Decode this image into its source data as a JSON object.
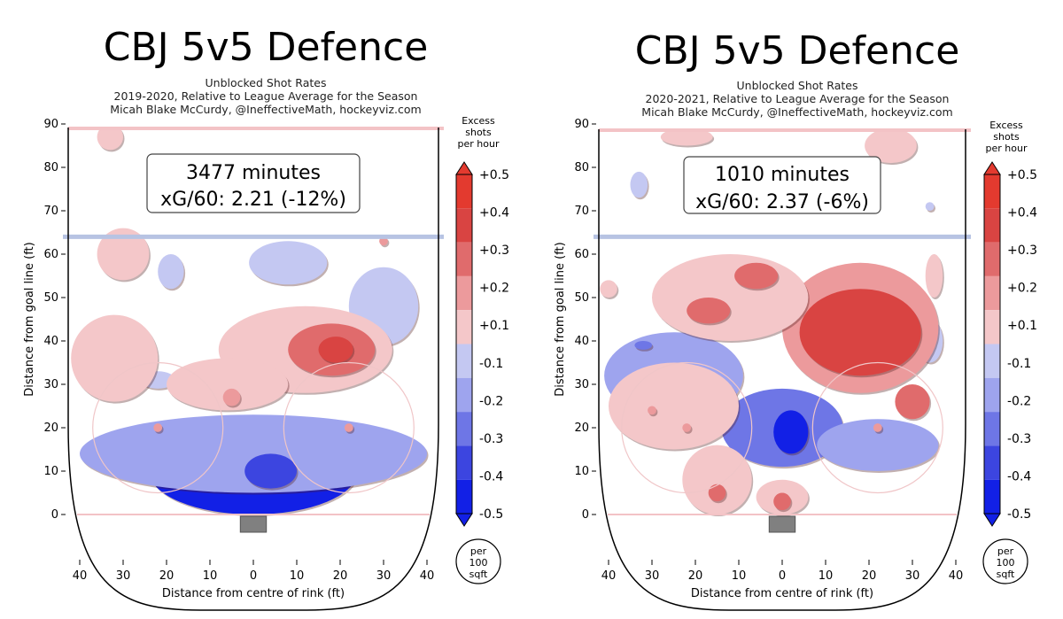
{
  "colors": {
    "red": [
      "#f4c7c9",
      "#ec9a9c",
      "#e06b6c",
      "#d94442",
      "#e33a2f"
    ],
    "blue": [
      "#c4c8f2",
      "#9ea4ee",
      "#6e76e6",
      "#3c45e0",
      "#1220e6"
    ],
    "blue_line": "#b7c3e3",
    "goal_line": "#f3c3c6",
    "net": "#808080"
  },
  "shared": {
    "colorbar_title": [
      "Excess",
      "shots",
      "per hour"
    ],
    "colorbar_ticks": [
      "+0.5",
      "+0.4",
      "+0.3",
      "+0.2",
      "+0.1",
      "-0.1",
      "-0.2",
      "-0.3",
      "-0.4",
      "-0.5"
    ],
    "unit_circle": [
      "per",
      "100",
      "sqft"
    ],
    "xlabel": "Distance from centre of rink (ft)",
    "ylabel": "Distance from goal line (ft)",
    "x_ticks": [
      "40",
      "30",
      "20",
      "10",
      "0",
      "10",
      "20",
      "30",
      "40"
    ],
    "y_ticks": [
      "0",
      "10",
      "20",
      "30",
      "40",
      "50",
      "60",
      "70",
      "80",
      "90"
    ]
  },
  "chart_data": [
    {
      "type": "heatmap",
      "title": "CBJ 5v5 Defence",
      "subtitle_lines": [
        "Unblocked Shot Rates",
        "2019-2020, Relative to League Average for the Season",
        "Micah Blake McCurdy, @IneffectiveMath, hockeyviz.com"
      ],
      "box_lines": [
        "3477 minutes",
        "xG/60: 2.21 (-12%)"
      ],
      "xlabel": "Distance from centre of rink (ft)",
      "ylabel": "Distance from goal line (ft)",
      "xlim": [
        -42,
        42
      ],
      "ylim": [
        -10,
        90
      ],
      "levels": [
        -0.5,
        -0.4,
        -0.3,
        -0.2,
        -0.1,
        0.1,
        0.2,
        0.3,
        0.4,
        0.5
      ],
      "regions": [
        {
          "x": 0,
          "y": 10,
          "rx": 24,
          "ry": 10,
          "value": -0.5
        },
        {
          "x": 0,
          "y": 14,
          "rx": 40,
          "ry": 9,
          "value": -0.2
        },
        {
          "x": 4,
          "y": 10,
          "rx": 6,
          "ry": 4,
          "value": -0.4
        },
        {
          "x": 30,
          "y": 48,
          "rx": 8,
          "ry": 9,
          "value": -0.1
        },
        {
          "x": 8,
          "y": 58,
          "rx": 9,
          "ry": 5,
          "value": -0.1
        },
        {
          "x": -19,
          "y": 56,
          "rx": 3,
          "ry": 4,
          "value": -0.1
        },
        {
          "x": -22,
          "y": 31,
          "rx": 4,
          "ry": 2,
          "value": -0.1
        },
        {
          "x": 12,
          "y": 38,
          "rx": 20,
          "ry": 10,
          "value": 0.1
        },
        {
          "x": 18,
          "y": 38,
          "rx": 10,
          "ry": 6,
          "value": 0.3
        },
        {
          "x": 19,
          "y": 38,
          "rx": 4,
          "ry": 3,
          "value": 0.4
        },
        {
          "x": -32,
          "y": 36,
          "rx": 10,
          "ry": 10,
          "value": 0.1
        },
        {
          "x": -30,
          "y": 60,
          "rx": 6,
          "ry": 6,
          "value": 0.1
        },
        {
          "x": -33,
          "y": 87,
          "rx": 3,
          "ry": 3,
          "value": 0.1
        },
        {
          "x": -6,
          "y": 30,
          "rx": 14,
          "ry": 6,
          "value": 0.1
        },
        {
          "x": -5,
          "y": 27,
          "rx": 2,
          "ry": 2,
          "value": 0.2
        },
        {
          "x": -22,
          "y": 20,
          "rx": 1,
          "ry": 1,
          "value": 0.2
        },
        {
          "x": 22,
          "y": 20,
          "rx": 1,
          "ry": 1,
          "value": 0.2
        },
        {
          "x": 30,
          "y": 63,
          "rx": 1,
          "ry": 1,
          "value": 0.2
        }
      ]
    },
    {
      "type": "heatmap",
      "title": "CBJ 5v5 Defence",
      "subtitle_lines": [
        "Unblocked Shot Rates",
        "2020-2021, Relative to League Average for the Season",
        "Micah Blake McCurdy, @IneffectiveMath, hockeyviz.com"
      ],
      "box_lines": [
        "1010 minutes",
        "xG/60: 2.37 (-6%)"
      ],
      "xlabel": "Distance from centre of rink (ft)",
      "ylabel": "Distance from goal line (ft)",
      "xlim": [
        -42,
        42
      ],
      "ylim": [
        -10,
        90
      ],
      "levels": [
        -0.5,
        -0.4,
        -0.3,
        -0.2,
        -0.1,
        0.1,
        0.2,
        0.3,
        0.4,
        0.5
      ],
      "regions": [
        {
          "x": 0,
          "y": 20,
          "rx": 14,
          "ry": 9,
          "value": -0.3
        },
        {
          "x": 2,
          "y": 19,
          "rx": 4,
          "ry": 5,
          "value": -0.5
        },
        {
          "x": -25,
          "y": 32,
          "rx": 16,
          "ry": 10,
          "value": -0.2
        },
        {
          "x": -32,
          "y": 39,
          "rx": 2,
          "ry": 1,
          "value": -0.3
        },
        {
          "x": 22,
          "y": 16,
          "rx": 14,
          "ry": 6,
          "value": -0.2
        },
        {
          "x": -33,
          "y": 76,
          "rx": 2,
          "ry": 3,
          "value": -0.1
        },
        {
          "x": 34,
          "y": 40,
          "rx": 3,
          "ry": 5,
          "value": -0.1
        },
        {
          "x": 34,
          "y": 71,
          "rx": 1,
          "ry": 1,
          "value": -0.1
        },
        {
          "x": 18,
          "y": 43,
          "rx": 18,
          "ry": 15,
          "value": 0.2
        },
        {
          "x": 18,
          "y": 42,
          "rx": 14,
          "ry": 10,
          "value": 0.4
        },
        {
          "x": 30,
          "y": 26,
          "rx": 4,
          "ry": 4,
          "value": 0.3
        },
        {
          "x": -12,
          "y": 50,
          "rx": 18,
          "ry": 10,
          "value": 0.1
        },
        {
          "x": -17,
          "y": 47,
          "rx": 5,
          "ry": 3,
          "value": 0.3
        },
        {
          "x": -6,
          "y": 55,
          "rx": 5,
          "ry": 3,
          "value": 0.3
        },
        {
          "x": -25,
          "y": 25,
          "rx": 15,
          "ry": 10,
          "value": 0.1
        },
        {
          "x": -15,
          "y": 8,
          "rx": 8,
          "ry": 8,
          "value": 0.1
        },
        {
          "x": -15,
          "y": 5,
          "rx": 2,
          "ry": 2,
          "value": 0.3
        },
        {
          "x": 0,
          "y": 4,
          "rx": 6,
          "ry": 4,
          "value": 0.1
        },
        {
          "x": 0,
          "y": 3,
          "rx": 2,
          "ry": 2,
          "value": 0.3
        },
        {
          "x": 25,
          "y": 85,
          "rx": 6,
          "ry": 4,
          "value": 0.1
        },
        {
          "x": -22,
          "y": 87,
          "rx": 6,
          "ry": 2,
          "value": 0.1
        },
        {
          "x": 35,
          "y": 55,
          "rx": 2,
          "ry": 5,
          "value": 0.1
        },
        {
          "x": -40,
          "y": 52,
          "rx": 2,
          "ry": 2,
          "value": 0.1
        },
        {
          "x": -30,
          "y": 24,
          "rx": 1,
          "ry": 1,
          "value": 0.2
        },
        {
          "x": -22,
          "y": 20,
          "rx": 1,
          "ry": 1,
          "value": 0.2
        },
        {
          "x": 22,
          "y": 20,
          "rx": 1,
          "ry": 1,
          "value": 0.2
        }
      ]
    }
  ]
}
